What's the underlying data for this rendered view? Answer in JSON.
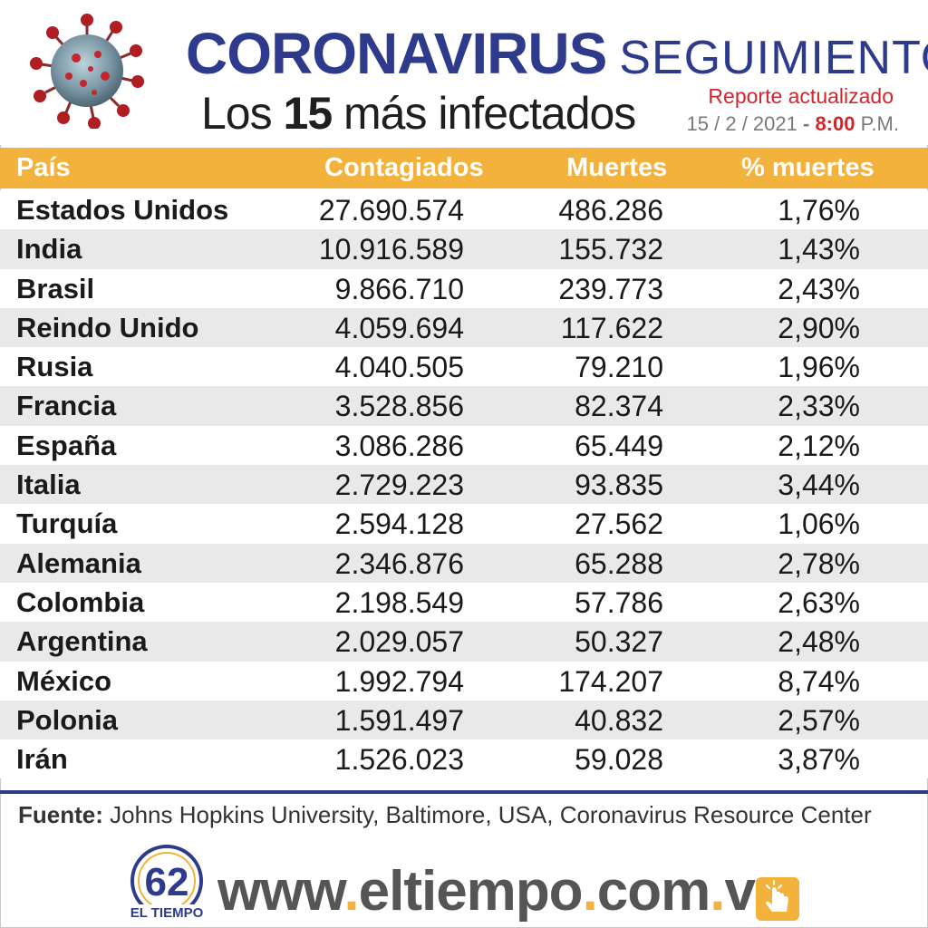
{
  "header": {
    "title_bold": "CORONAVIRUS",
    "title_thin": "SEGUIMIENTO",
    "subtitle_pre": "Los ",
    "subtitle_num": "15",
    "subtitle_post": " más infectados",
    "report_label": "Reporte actualizado",
    "report_date": "15 / 2 / 2021",
    "report_dash": " - ",
    "report_time": "8:00",
    "report_ampm": " P.M."
  },
  "table": {
    "columns": [
      "País",
      "Contagiados",
      "Muertes",
      "% muertes"
    ],
    "rows": [
      {
        "country": "Estados Unidos",
        "cases": "27.690.574",
        "deaths": "486.286",
        "pct": "1,76%"
      },
      {
        "country": "India",
        "cases": "10.916.589",
        "deaths": "155.732",
        "pct": "1,43%"
      },
      {
        "country": "Brasil",
        "cases": "9.866.710",
        "deaths": "239.773",
        "pct": "2,43%"
      },
      {
        "country": "Reindo Unido",
        "cases": "4.059.694",
        "deaths": "117.622",
        "pct": "2,90%"
      },
      {
        "country": "Rusia",
        "cases": "4.040.505",
        "deaths": "79.210",
        "pct": "1,96%"
      },
      {
        "country": "Francia",
        "cases": "3.528.856",
        "deaths": "82.374",
        "pct": "2,33%"
      },
      {
        "country": "España",
        "cases": "3.086.286",
        "deaths": "65.449",
        "pct": "2,12%"
      },
      {
        "country": "Italia",
        "cases": "2.729.223",
        "deaths": "93.835",
        "pct": "3,44%"
      },
      {
        "country": "Turquía",
        "cases": "2.594.128",
        "deaths": "27.562",
        "pct": "1,06%"
      },
      {
        "country": "Alemania",
        "cases": "2.346.876",
        "deaths": "65.288",
        "pct": "2,78%"
      },
      {
        "country": "Colombia",
        "cases": "2.198.549",
        "deaths": "57.786",
        "pct": "2,63%"
      },
      {
        "country": "Argentina",
        "cases": "2.029.057",
        "deaths": "50.327",
        "pct": "2,48%"
      },
      {
        "country": "México",
        "cases": "1.992.794",
        "deaths": "174.207",
        "pct": "8,74%"
      },
      {
        "country": "Polonia",
        "cases": "1.591.497",
        "deaths": "40.832",
        "pct": "2,57%"
      },
      {
        "country": "Irán",
        "cases": "1.526.023",
        "deaths": "59.028",
        "pct": "3,87%"
      }
    ]
  },
  "source": {
    "label": "Fuente:",
    "text": " Johns Hopkins University, Baltimore, USA, Coronavirus Resource Center"
  },
  "footer": {
    "logo_number": "62",
    "logo_text": "EL TIEMPO",
    "url_parts": [
      "www",
      ".",
      "eltiempo",
      ".",
      "com",
      ".",
      "ve"
    ]
  },
  "colors": {
    "title_blue": "#2e3a8c",
    "header_orange": "#f3b23b",
    "accent_red": "#d0262c",
    "stripe_gray": "#e9e9e9"
  }
}
